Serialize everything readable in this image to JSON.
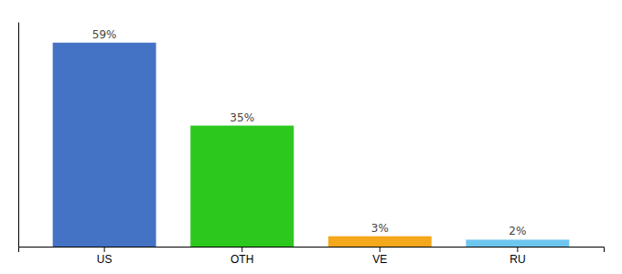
{
  "chart_data": {
    "type": "bar",
    "categories": [
      "US",
      "OTH",
      "VE",
      "RU"
    ],
    "values": [
      59,
      35,
      3,
      2
    ],
    "value_labels": [
      "59%",
      "35%",
      "3%",
      "2%"
    ],
    "colors": [
      "#4472c4",
      "#2dc81e",
      "#f5a81b",
      "#6ec6f0"
    ],
    "ylim": [
      0,
      65
    ],
    "data_labels": true,
    "tick_labels": "x",
    "grid": false
  }
}
